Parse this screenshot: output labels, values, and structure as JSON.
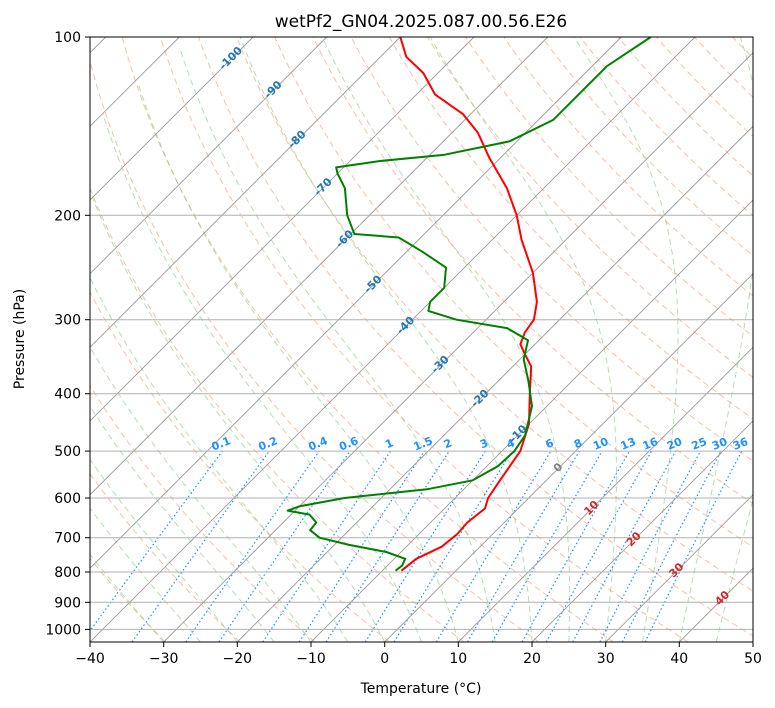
{
  "chart_data": {
    "type": "skew-t log-p",
    "title": "wetPf2_GN04.2025.087.00.56.E26",
    "xlabel": "Temperature (°C)",
    "ylabel": "Pressure (hPa)",
    "xlim": [
      -40,
      50
    ],
    "ylim": [
      1050,
      100
    ],
    "y_scale": "log",
    "grid": true,
    "x_ticks": [
      -40,
      -30,
      -20,
      -10,
      0,
      10,
      20,
      30,
      40,
      50
    ],
    "x_tick_labels": [
      "−40",
      "−30",
      "−20",
      "−10",
      "0",
      "10",
      "20",
      "30",
      "40",
      "50"
    ],
    "y_ticks": [
      100,
      200,
      300,
      400,
      500,
      600,
      700,
      800,
      900,
      1000
    ],
    "y_tick_labels": [
      "100",
      "200",
      "300",
      "400",
      "500",
      "600",
      "700",
      "800",
      "900",
      "1000"
    ],
    "series": [
      {
        "color": "#ff0000",
        "points": [
          {
            "p": 796,
            "t": -7.4
          },
          {
            "p": 760,
            "t": -7.0
          },
          {
            "p": 725,
            "t": -5.2
          },
          {
            "p": 690,
            "t": -4.8
          },
          {
            "p": 660,
            "t": -5.0
          },
          {
            "p": 625,
            "t": -4.5
          },
          {
            "p": 600,
            "t": -5.5
          },
          {
            "p": 560,
            "t": -6.3
          },
          {
            "p": 500,
            "t": -7.5
          },
          {
            "p": 450,
            "t": -10.0
          },
          {
            "p": 400,
            "t": -14.0
          },
          {
            "p": 360,
            "t": -17.5
          },
          {
            "p": 340,
            "t": -20.5
          },
          {
            "p": 330,
            "t": -22.0
          },
          {
            "p": 315,
            "t": -23.0
          },
          {
            "p": 300,
            "t": -23.5
          },
          {
            "p": 280,
            "t": -25.5
          },
          {
            "p": 250,
            "t": -30.0
          },
          {
            "p": 220,
            "t": -36.0
          },
          {
            "p": 200,
            "t": -40.0
          },
          {
            "p": 180,
            "t": -45.0
          },
          {
            "p": 160,
            "t": -51.5
          },
          {
            "p": 145,
            "t": -56.5
          },
          {
            "p": 135,
            "t": -61.0
          },
          {
            "p": 125,
            "t": -67.5
          },
          {
            "p": 115,
            "t": -72.0
          },
          {
            "p": 108,
            "t": -76.5
          },
          {
            "p": 100,
            "t": -80.0
          }
        ]
      },
      {
        "color": "#008000",
        "points": [
          {
            "p": 796,
            "t": -8.2
          },
          {
            "p": 780,
            "t": -8.0
          },
          {
            "p": 760,
            "t": -8.5
          },
          {
            "p": 740,
            "t": -12.0
          },
          {
            "p": 720,
            "t": -18.0
          },
          {
            "p": 700,
            "t": -23.0
          },
          {
            "p": 680,
            "t": -25.3
          },
          {
            "p": 660,
            "t": -25.5
          },
          {
            "p": 640,
            "t": -27.5
          },
          {
            "p": 630,
            "t": -31.0
          },
          {
            "p": 620,
            "t": -30.0
          },
          {
            "p": 600,
            "t": -25.0
          },
          {
            "p": 580,
            "t": -15.0
          },
          {
            "p": 560,
            "t": -10.0
          },
          {
            "p": 530,
            "t": -8.5
          },
          {
            "p": 500,
            "t": -8.3
          },
          {
            "p": 470,
            "t": -9.0
          },
          {
            "p": 420,
            "t": -12.0
          },
          {
            "p": 380,
            "t": -16.0
          },
          {
            "p": 350,
            "t": -19.5
          },
          {
            "p": 325,
            "t": -21.5
          },
          {
            "p": 310,
            "t": -26.0
          },
          {
            "p": 300,
            "t": -34.0
          },
          {
            "p": 290,
            "t": -39.0
          },
          {
            "p": 280,
            "t": -40.0
          },
          {
            "p": 265,
            "t": -40.0
          },
          {
            "p": 245,
            "t": -42.5
          },
          {
            "p": 230,
            "t": -48.0
          },
          {
            "p": 218,
            "t": -53.0
          },
          {
            "p": 215,
            "t": -59.5
          },
          {
            "p": 200,
            "t": -63.0
          },
          {
            "p": 180,
            "t": -67.0
          },
          {
            "p": 170,
            "t": -70.0
          },
          {
            "p": 166,
            "t": -71.0
          },
          {
            "p": 162,
            "t": -66.0
          },
          {
            "p": 158,
            "t": -58.0
          },
          {
            "p": 150,
            "t": -51.0
          },
          {
            "p": 138,
            "t": -48.0
          },
          {
            "p": 125,
            "t": -48.0
          },
          {
            "p": 112,
            "t": -48.0
          },
          {
            "p": 100,
            "t": -46.0
          }
        ]
      }
    ],
    "isotherm_labels": [
      "-100",
      "-90",
      "-80",
      "-70",
      "-60",
      "-50",
      "-40",
      "-30",
      "-20",
      "-10"
    ],
    "mixing_ratio_labels": [
      "0.1",
      "0.2",
      "0.4",
      "0.6",
      "1",
      "1.5",
      "2",
      "3",
      "4",
      "6",
      "8",
      "10",
      "13",
      "16",
      "20",
      "25",
      "30",
      "36"
    ],
    "warm_isotherm_labels": [
      "0",
      "10",
      "20",
      "30",
      "40"
    ],
    "colors": {
      "temperature": "#ff0000",
      "dewpoint": "#008000",
      "isotherm_label_cold": "#1f77b4",
      "isotherm_label_warm": "#d62728",
      "isotherm_label_zero": "#808080",
      "mixing_ratio": "#1e90ff",
      "dry_adiabat": "#f4a582",
      "moist_adiabat": "#74c476"
    }
  }
}
